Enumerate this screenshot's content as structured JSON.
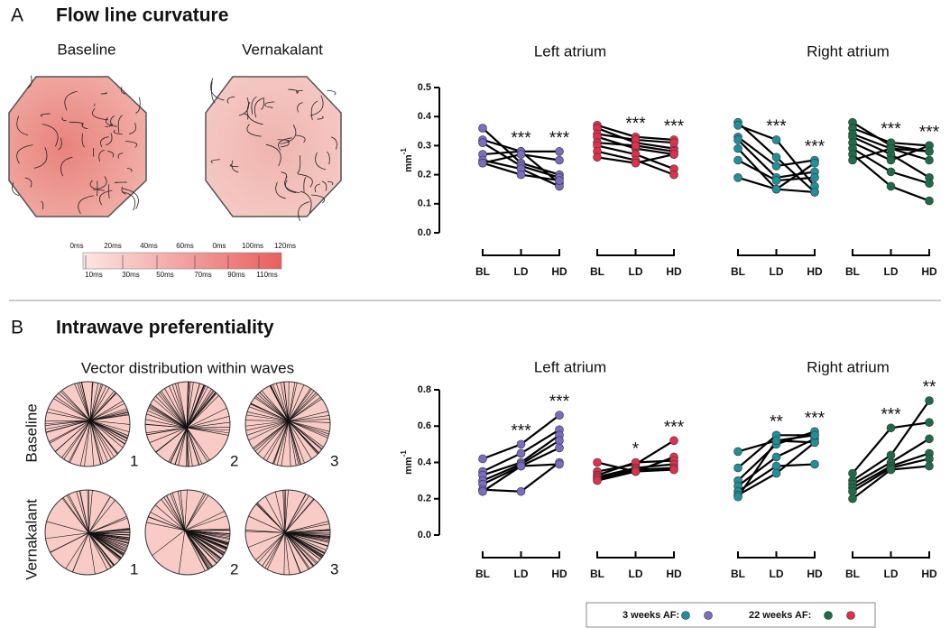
{
  "panel_a": {
    "letter": "A",
    "title": "Flow line curvature",
    "images": [
      "Baseline",
      "Vernakalant"
    ],
    "colorbar": {
      "top_labels": [
        "0ms",
        "20ms",
        "40ms",
        "60ms",
        "0ms",
        "100ms",
        "120ms"
      ],
      "bottom_labels": [
        "10ms",
        "30ms",
        "50ms",
        "70ms",
        "90ms",
        "110ms"
      ]
    }
  },
  "panel_b": {
    "letter": "B",
    "title": "Intrawave preferentiality",
    "subtitle": "Vector distribution within waves",
    "row_labels": [
      "Baseline",
      "Vernakalant"
    ],
    "column_numbers": [
      "1",
      "2",
      "3"
    ]
  },
  "chart_data": [
    {
      "type": "line",
      "title": "Left atrium",
      "ylabel": "mm",
      "ylabel_sup": "-1",
      "categories": [
        "BL",
        "LD",
        "HD"
      ],
      "ylim": [
        0,
        0.5
      ],
      "yticks": [
        {
          "value": 0,
          "label": "0.0"
        },
        0.1,
        0.2,
        0.3,
        0.4,
        0.5
      ],
      "groups": [
        {
          "color": "#7a6cc0",
          "annotations": [
            null,
            "***",
            "***"
          ],
          "series": [
            {
              "values": [
                0.36,
                0.24,
                0.2
              ]
            },
            {
              "values": [
                0.32,
                0.28,
                0.17
              ]
            },
            {
              "values": [
                0.31,
                0.23,
                0.19
              ]
            },
            {
              "values": [
                0.27,
                0.28,
                0.28
              ]
            },
            {
              "values": [
                0.25,
                0.22,
                0.16
              ]
            },
            {
              "values": [
                0.24,
                0.27,
                0.25
              ]
            },
            {
              "values": [
                0.24,
                0.2,
                0.18
              ]
            }
          ]
        },
        {
          "color": "#e0304e",
          "annotations": [
            null,
            "***",
            "***"
          ],
          "series": [
            {
              "values": [
                0.37,
                0.33,
                0.32
              ]
            },
            {
              "values": [
                0.36,
                0.31,
                0.29
              ]
            },
            {
              "values": [
                0.34,
                0.32,
                0.31
              ]
            },
            {
              "values": [
                0.33,
                0.29,
                0.27
              ]
            },
            {
              "values": [
                0.31,
                0.3,
                0.28
              ]
            },
            {
              "values": [
                0.3,
                0.27,
                0.22
              ]
            },
            {
              "values": [
                0.28,
                0.25,
                0.2
              ]
            },
            {
              "values": [
                0.26,
                0.24,
                0.27
              ]
            }
          ]
        }
      ]
    },
    {
      "type": "line",
      "title": "Right atrium",
      "categories": [
        "BL",
        "LD",
        "HD"
      ],
      "ylim": [
        0,
        0.5
      ],
      "groups": [
        {
          "color": "#1f8f9a",
          "annotations": [
            null,
            "***",
            "***"
          ],
          "series": [
            {
              "values": [
                0.38,
                0.26,
                0.14
              ]
            },
            {
              "values": [
                0.37,
                0.32,
                0.16
              ]
            },
            {
              "values": [
                0.33,
                0.23,
                0.25
              ]
            },
            {
              "values": [
                0.32,
                0.19,
                0.21
              ]
            },
            {
              "values": [
                0.29,
                0.15,
                0.24
              ]
            },
            {
              "values": [
                0.25,
                0.18,
                0.19
              ]
            },
            {
              "values": [
                0.19,
                0.15,
                0.14
              ]
            }
          ]
        },
        {
          "color": "#1e6b4a",
          "annotations": [
            null,
            "***",
            "***"
          ],
          "series": [
            {
              "values": [
                0.38,
                0.3,
                0.28
              ]
            },
            {
              "values": [
                0.36,
                0.31,
                0.3
              ]
            },
            {
              "values": [
                0.34,
                0.29,
                0.25
              ]
            },
            {
              "values": [
                0.33,
                0.27,
                0.19
              ]
            },
            {
              "values": [
                0.31,
                0.25,
                0.3
              ]
            },
            {
              "values": [
                0.29,
                0.21,
                0.17
              ]
            },
            {
              "values": [
                0.27,
                0.16,
                0.11
              ]
            },
            {
              "values": [
                0.25,
                0.29,
                0.28
              ]
            }
          ]
        }
      ]
    },
    {
      "type": "line",
      "title": "Left atrium",
      "ylabel": "mm",
      "ylabel_sup": "-1",
      "categories": [
        "BL",
        "LD",
        "HD"
      ],
      "ylim": [
        0,
        0.8
      ],
      "yticks": [
        {
          "value": 0,
          "label": "0.0"
        },
        0.2,
        0.4,
        0.6,
        0.8
      ],
      "groups": [
        {
          "color": "#7a6cc0",
          "annotations": [
            null,
            "***",
            "***"
          ],
          "series": [
            {
              "values": [
                0.42,
                0.5,
                0.66
              ]
            },
            {
              "values": [
                0.35,
                0.45,
                0.58
              ]
            },
            {
              "values": [
                0.33,
                0.4,
                0.55
              ]
            },
            {
              "values": [
                0.3,
                0.39,
                0.52
              ]
            },
            {
              "values": [
                0.28,
                0.38,
                0.48
              ]
            },
            {
              "values": [
                0.25,
                0.24,
                0.4
              ]
            },
            {
              "values": [
                0.24,
                0.38,
                0.39
              ]
            }
          ]
        },
        {
          "color": "#e0304e",
          "annotations": [
            null,
            "*",
            "***"
          ],
          "series": [
            {
              "values": [
                0.4,
                0.35,
                0.43
              ]
            },
            {
              "values": [
                0.35,
                0.39,
                0.52
              ]
            },
            {
              "values": [
                0.33,
                0.4,
                0.41
              ]
            },
            {
              "values": [
                0.32,
                0.37,
                0.39
              ]
            },
            {
              "values": [
                0.31,
                0.36,
                0.37
              ]
            },
            {
              "values": [
                0.3,
                0.35,
                0.36
              ]
            }
          ]
        }
      ]
    },
    {
      "type": "line",
      "title": "Right atrium",
      "categories": [
        "BL",
        "LD",
        "HD"
      ],
      "ylim": [
        0,
        0.8
      ],
      "groups": [
        {
          "color": "#1f8f9a",
          "annotations": [
            null,
            "**",
            "***"
          ],
          "series": [
            {
              "values": [
                0.46,
                0.52,
                0.51
              ]
            },
            {
              "values": [
                0.37,
                0.55,
                0.55
              ]
            },
            {
              "values": [
                0.3,
                0.5,
                0.57
              ]
            },
            {
              "values": [
                0.27,
                0.43,
                0.53
              ]
            },
            {
              "values": [
                0.24,
                0.38,
                0.39
              ]
            },
            {
              "values": [
                0.22,
                0.34,
                0.51
              ]
            },
            {
              "values": [
                0.21,
                0.52,
                0.55
              ]
            }
          ]
        },
        {
          "color": "#1e6b4a",
          "annotations": [
            null,
            "***",
            "**"
          ],
          "series": [
            {
              "values": [
                0.34,
                0.59,
                0.62
              ]
            },
            {
              "values": [
                0.3,
                0.44,
                0.74
              ]
            },
            {
              "values": [
                0.28,
                0.4,
                0.53
              ]
            },
            {
              "values": [
                0.26,
                0.38,
                0.45
              ]
            },
            {
              "values": [
                0.24,
                0.37,
                0.42
              ]
            },
            {
              "values": [
                0.2,
                0.36,
                0.38
              ]
            }
          ]
        }
      ]
    }
  ],
  "legend": {
    "items": [
      {
        "label": "3 weeks AF:",
        "colors": [
          "#1f8f9a",
          "#7a6cc0"
        ]
      },
      {
        "label": "22 weeks AF:",
        "colors": [
          "#1e6b4a",
          "#e0304e"
        ]
      }
    ]
  }
}
